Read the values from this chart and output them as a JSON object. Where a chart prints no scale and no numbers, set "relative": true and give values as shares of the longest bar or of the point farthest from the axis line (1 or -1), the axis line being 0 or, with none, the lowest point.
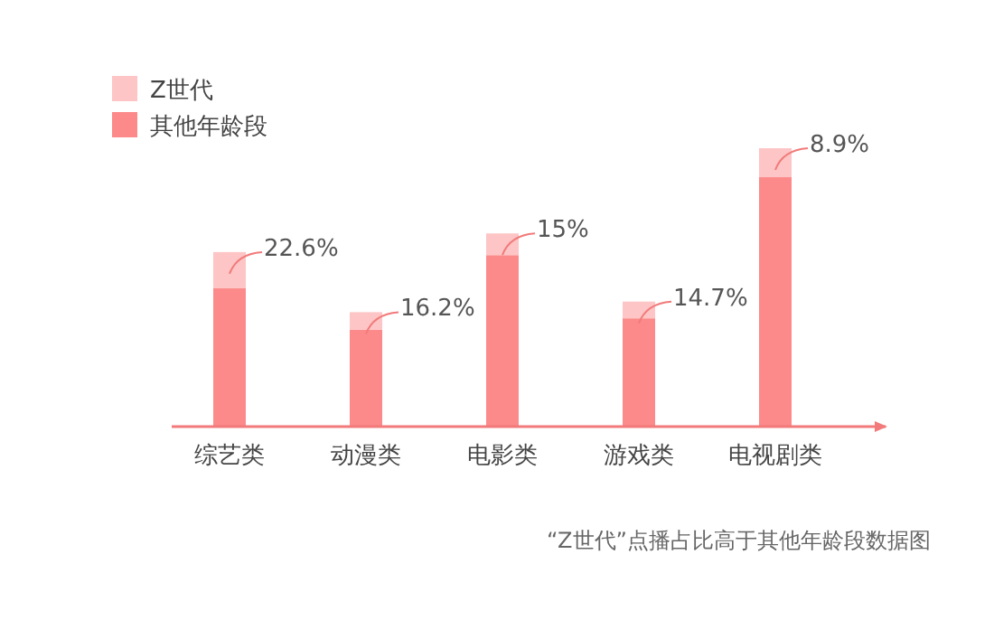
{
  "chart_data": {
    "type": "bar",
    "stacked": true,
    "relative": true,
    "legend": "top left",
    "categories": [
      "综艺类",
      "动漫类",
      "电影类",
      "游戏类",
      "电视剧类"
    ],
    "series": [
      {
        "name": "其他年龄段",
        "color": "#fc8a8a",
        "values": [
          0.497,
          0.348,
          0.616,
          0.389,
          0.896
        ]
      },
      {
        "name": "Z世代",
        "color": "#fdc5c5",
        "values": [
          0.13,
          0.063,
          0.078,
          0.06,
          0.104
        ]
      }
    ],
    "annotations": [
      {
        "text": "22.6%",
        "x": "综艺类",
        "y": 0.627
      },
      {
        "text": "16.2%",
        "x": "动漫类",
        "y": 0.411
      },
      {
        "text": "15%",
        "x": "电影类",
        "y": 0.694
      },
      {
        "text": "14.7%",
        "x": "游戏类",
        "y": 0.449
      },
      {
        "text": "8.9%",
        "x": "电视剧类",
        "y": 1.0
      },
      "“Z世代”点播占比高于其他年龄段数据图"
    ]
  }
}
